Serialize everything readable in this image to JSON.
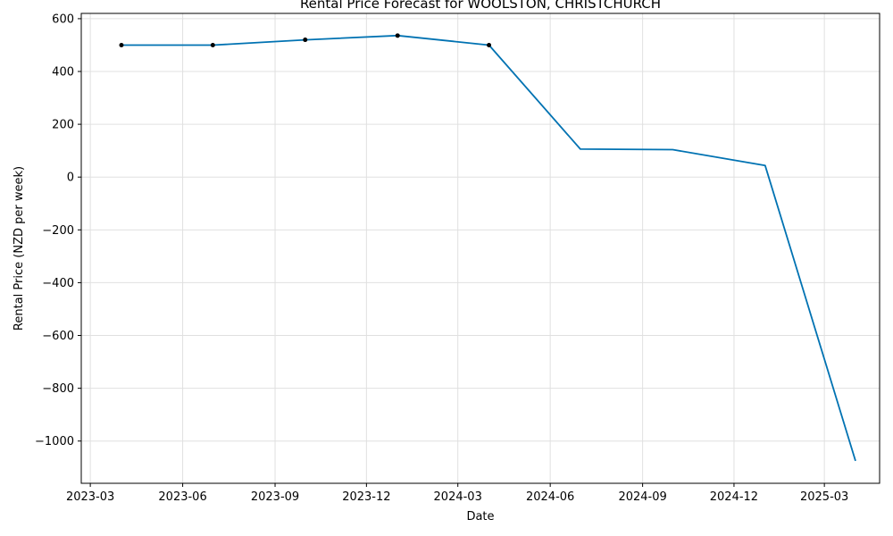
{
  "chart_data": {
    "type": "line",
    "title": "Rental Price Forecast for WOOLSTON, CHRISTCHURCH",
    "xlabel": "Date",
    "ylabel": "Rental Price (NZD per week)",
    "xlim": [
      "2023-02-20",
      "2025-04-25"
    ],
    "ylim": [
      -1160,
      620
    ],
    "x_ticks": [
      "2023-03-01",
      "2023-06-01",
      "2023-09-01",
      "2023-12-01",
      "2024-03-01",
      "2024-06-01",
      "2024-09-01",
      "2024-12-01",
      "2025-03-01"
    ],
    "x_tick_labels": [
      "2023-03",
      "2023-06",
      "2023-09",
      "2023-12",
      "2024-03",
      "2024-06",
      "2024-09",
      "2024-12",
      "2025-03"
    ],
    "y_ticks": [
      600,
      400,
      200,
      0,
      -200,
      -400,
      -600,
      -800,
      -1000
    ],
    "y_tick_labels": [
      "600",
      "400",
      "200",
      "0",
      "−200",
      "−400",
      "−600",
      "−800",
      "−1000"
    ],
    "grid": true,
    "series": [
      {
        "color": "#0072B2",
        "x": [
          "2023-04-01",
          "2023-07-01",
          "2023-10-01",
          "2024-01-01",
          "2024-04-01",
          "2024-07-01",
          "2024-10-01",
          "2025-01-01",
          "2025-04-01"
        ],
        "values": [
          500,
          500,
          520,
          536,
          500,
          106,
          104,
          44,
          -1075
        ]
      }
    ],
    "observed_points": {
      "color": "#000000",
      "x": [
        "2023-04-01",
        "2023-07-01",
        "2023-10-01",
        "2024-01-01",
        "2024-04-01"
      ],
      "values": [
        500,
        500,
        520,
        536,
        500
      ]
    }
  }
}
